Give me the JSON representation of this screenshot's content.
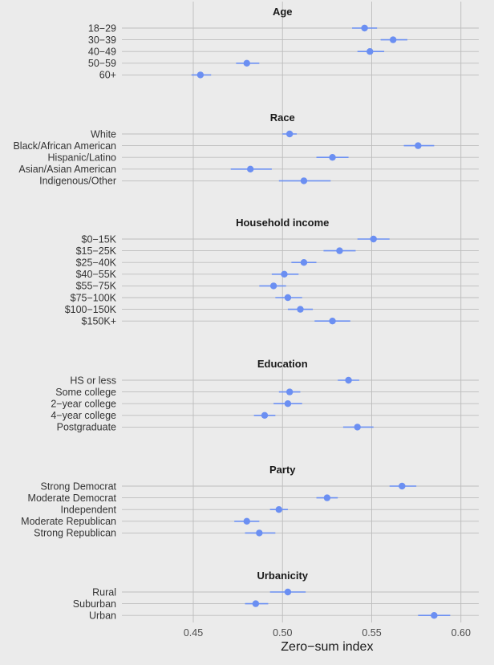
{
  "chart_data": {
    "type": "scatter",
    "variant": "dot-and-whisker (point estimate with confidence interval)",
    "title": "",
    "xlabel": "Zero−sum index",
    "ylabel": "",
    "xlim": [
      0.41,
      0.61
    ],
    "xticks": [
      0.45,
      0.5,
      0.55,
      0.6
    ],
    "xtick_labels": [
      "0.45",
      "0.50",
      "0.55",
      "0.60"
    ],
    "grid": true,
    "legend": "none",
    "colors": {
      "point": "#6b8ff2",
      "interval": "#6b8ff2",
      "background": "#ebebeb",
      "grid": "#bdbdbd"
    },
    "groups": [
      {
        "name": "Age",
        "items": [
          {
            "label": "18−29",
            "estimate": 0.546,
            "low": 0.539,
            "high": 0.553
          },
          {
            "label": "30−39",
            "estimate": 0.562,
            "low": 0.555,
            "high": 0.57
          },
          {
            "label": "40−49",
            "estimate": 0.549,
            "low": 0.542,
            "high": 0.557
          },
          {
            "label": "50−59",
            "estimate": 0.48,
            "low": 0.474,
            "high": 0.487
          },
          {
            "label": "60+",
            "estimate": 0.454,
            "low": 0.449,
            "high": 0.46
          }
        ]
      },
      {
        "name": "Race",
        "items": [
          {
            "label": "White",
            "estimate": 0.504,
            "low": 0.5,
            "high": 0.508
          },
          {
            "label": "Black/African American",
            "estimate": 0.576,
            "low": 0.568,
            "high": 0.585
          },
          {
            "label": "Hispanic/Latino",
            "estimate": 0.528,
            "low": 0.519,
            "high": 0.537
          },
          {
            "label": "Asian/Asian American",
            "estimate": 0.482,
            "low": 0.471,
            "high": 0.494
          },
          {
            "label": "Indigenous/Other",
            "estimate": 0.512,
            "low": 0.498,
            "high": 0.527
          }
        ]
      },
      {
        "name": "Household income",
        "items": [
          {
            "label": "$0−15K",
            "estimate": 0.551,
            "low": 0.542,
            "high": 0.56
          },
          {
            "label": "$15−25K",
            "estimate": 0.532,
            "low": 0.523,
            "high": 0.541
          },
          {
            "label": "$25−40K",
            "estimate": 0.512,
            "low": 0.505,
            "high": 0.519
          },
          {
            "label": "$40−55K",
            "estimate": 0.501,
            "low": 0.494,
            "high": 0.509
          },
          {
            "label": "$55−75K",
            "estimate": 0.495,
            "low": 0.487,
            "high": 0.502
          },
          {
            "label": "$75−100K",
            "estimate": 0.503,
            "low": 0.496,
            "high": 0.511
          },
          {
            "label": "$100−150K",
            "estimate": 0.51,
            "low": 0.503,
            "high": 0.517
          },
          {
            "label": "$150K+",
            "estimate": 0.528,
            "low": 0.518,
            "high": 0.538
          }
        ]
      },
      {
        "name": "Education",
        "items": [
          {
            "label": "HS or less",
            "estimate": 0.537,
            "low": 0.531,
            "high": 0.543
          },
          {
            "label": "Some college",
            "estimate": 0.504,
            "low": 0.498,
            "high": 0.51
          },
          {
            "label": "2−year college",
            "estimate": 0.503,
            "low": 0.495,
            "high": 0.511
          },
          {
            "label": "4−year college",
            "estimate": 0.49,
            "low": 0.484,
            "high": 0.496
          },
          {
            "label": "Postgraduate",
            "estimate": 0.542,
            "low": 0.534,
            "high": 0.551
          }
        ]
      },
      {
        "name": "Party",
        "items": [
          {
            "label": "Strong Democrat",
            "estimate": 0.567,
            "low": 0.56,
            "high": 0.575
          },
          {
            "label": "Moderate Democrat",
            "estimate": 0.525,
            "low": 0.519,
            "high": 0.531
          },
          {
            "label": "Independent",
            "estimate": 0.498,
            "low": 0.493,
            "high": 0.503
          },
          {
            "label": "Moderate Republican",
            "estimate": 0.48,
            "low": 0.473,
            "high": 0.487
          },
          {
            "label": "Strong Republican",
            "estimate": 0.487,
            "low": 0.479,
            "high": 0.496
          }
        ]
      },
      {
        "name": "Urbanicity",
        "items": [
          {
            "label": "Rural",
            "estimate": 0.503,
            "low": 0.493,
            "high": 0.513
          },
          {
            "label": "Suburban",
            "estimate": 0.485,
            "low": 0.479,
            "high": 0.492
          },
          {
            "label": "Urban",
            "estimate": 0.585,
            "low": 0.576,
            "high": 0.594
          }
        ]
      }
    ]
  }
}
